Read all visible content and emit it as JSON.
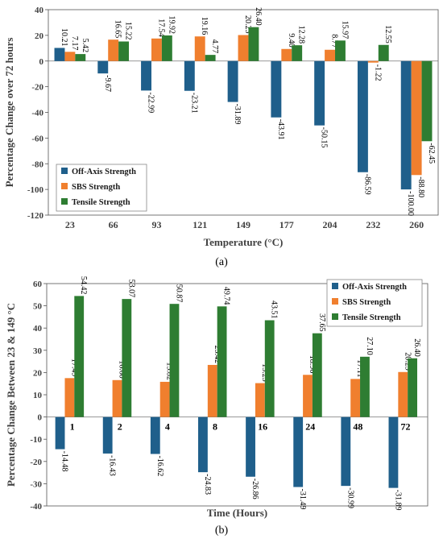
{
  "captions": {
    "a": "(a)",
    "b": "(b)"
  },
  "colors": {
    "off_axis": "#1f5f8b",
    "sbs": "#f07f2e",
    "tensile": "#2e7d32"
  },
  "chart_data": [
    {
      "type": "bar",
      "panel": "a",
      "title": "",
      "xlabel": "Temperature (°C)",
      "ylabel": "Percentage Change over 72 hours",
      "categories": [
        "23",
        "66",
        "93",
        "121",
        "149",
        "177",
        "204",
        "232",
        "260"
      ],
      "ylim": [
        -120,
        40
      ],
      "yticks": [
        40,
        20,
        0,
        -20,
        -40,
        -60,
        -80,
        -100,
        -120
      ],
      "grid": false,
      "legend_position": "bottom-left",
      "series": [
        {
          "name": "Off-Axis Strength",
          "values": [
            10.21,
            -9.67,
            -22.99,
            -23.21,
            -31.89,
            -43.91,
            -50.15,
            -86.59,
            -100.0
          ],
          "labels": [
            "10.21",
            "-9.67",
            "-22.99",
            "-23.21",
            "-31.89",
            "-43.91",
            "-50.15",
            "-86.59",
            "-100.00"
          ]
        },
        {
          "name": "SBS Strength",
          "values": [
            7.17,
            16.65,
            17.54,
            19.16,
            20.23,
            9.4,
            8.77,
            -1.22,
            -88.8
          ],
          "labels": [
            "7.17",
            "16.65",
            "17.54",
            "19.16",
            "20.23",
            "9.40",
            "8.77",
            "-1.22",
            "-88.80"
          ]
        },
        {
          "name": "Tensile Strength",
          "values": [
            5.42,
            15.22,
            19.92,
            4.77,
            26.4,
            12.28,
            15.97,
            12.55,
            -62.45
          ],
          "labels": [
            "5.42",
            "15.22",
            "19.92",
            "4.77",
            "26.40",
            "12.28",
            "15.97",
            "12.55",
            "-62.45"
          ]
        }
      ]
    },
    {
      "type": "bar",
      "panel": "b",
      "title": "",
      "xlabel": "Time (Hours)",
      "ylabel": "Percentage Change Between 23 & 149 °C",
      "categories": [
        "1",
        "2",
        "4",
        "8",
        "16",
        "24",
        "48",
        "72"
      ],
      "ylim": [
        -40,
        60
      ],
      "yticks": [
        60,
        50,
        40,
        30,
        20,
        10,
        0,
        -10,
        -20,
        -30,
        -40
      ],
      "grid": false,
      "legend_position": "top-right",
      "series": [
        {
          "name": "Off-Axis Strength",
          "values": [
            -14.48,
            -16.43,
            -16.62,
            -24.83,
            -26.86,
            -31.49,
            -30.99,
            -31.89
          ],
          "labels": [
            "-14.48",
            "-16.43",
            "-16.62",
            "-24.83",
            "-26.86",
            "-31.49",
            "-30.99",
            "-31.89"
          ]
        },
        {
          "name": "SBS Strength",
          "values": [
            17.49,
            16.6,
            15.82,
            23.42,
            15.23,
            18.96,
            17.11,
            20.23
          ],
          "labels": [
            "17.49",
            "16.60",
            "15.82",
            "23.42",
            "15.23",
            "18.96",
            "17.11",
            "20.23"
          ]
        },
        {
          "name": "Tensile Strength",
          "values": [
            54.42,
            53.07,
            50.87,
            49.74,
            43.51,
            37.65,
            27.1,
            26.4
          ],
          "labels": [
            "54.42",
            "53.07",
            "50.87",
            "49.74",
            "43.51",
            "37.65",
            "27.10",
            "26.40"
          ]
        }
      ]
    }
  ]
}
